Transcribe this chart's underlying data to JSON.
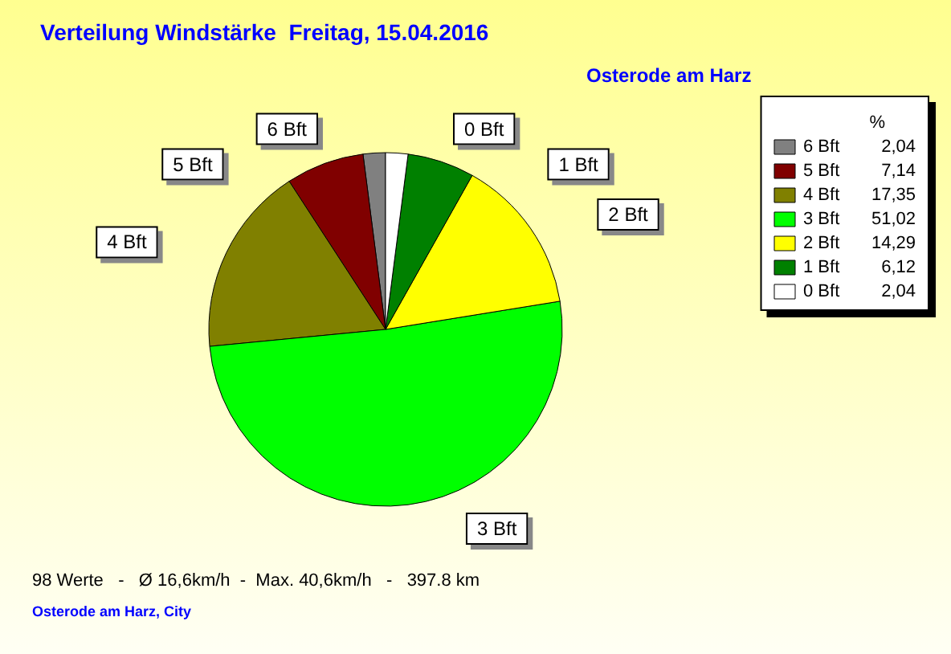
{
  "chart_data": {
    "type": "pie",
    "title": "Verteilung Windstärke  Freitag, 15.04.2016",
    "subtitle": "Osterode am Harz",
    "legend_title": "%",
    "categories": [
      "6 Bft",
      "5 Bft",
      "4 Bft",
      "3 Bft",
      "2 Bft",
      "1 Bft",
      "0 Bft"
    ],
    "values": [
      2.04,
      7.14,
      17.35,
      51.02,
      14.29,
      6.12,
      2.04
    ],
    "value_labels": [
      "2,04",
      "7,14",
      "17,35",
      "51,02",
      "14,29",
      "6,12",
      "2,04"
    ],
    "colors": [
      "#808080",
      "#800000",
      "#808000",
      "#00ff00",
      "#ffff00",
      "#008000",
      "#ffffff"
    ],
    "legend": "top right",
    "annotations": [
      "98 Werte   -   Ø 16,6km/h  -  Max. 40,6km/h   -   397.8 km",
      "Osterode am Harz, City"
    ]
  }
}
